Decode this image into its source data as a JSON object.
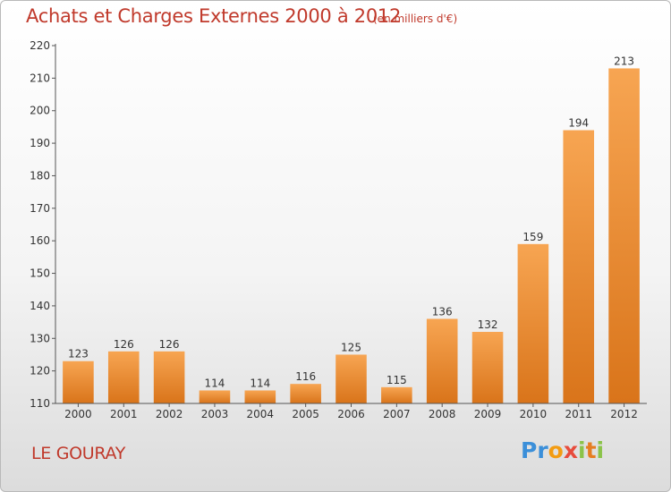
{
  "header": {
    "title": "Achats et Charges Externes 2000 à 2012",
    "unit_note": "(en milliers d'€)"
  },
  "footer": {
    "commune": "LE GOURAY",
    "logo_letters": [
      "P",
      "r",
      "o",
      "x",
      "i",
      "t",
      "i"
    ],
    "logo_colors": [
      "#3b8fd9",
      "#3b8fd9",
      "#f39c12",
      "#e74c3c",
      "#8bc34a",
      "#e67e22",
      "#8bc34a"
    ]
  },
  "chart_data": {
    "type": "bar",
    "title": "Achats et Charges Externes 2000 à 2012",
    "categories": [
      "2000",
      "2001",
      "2002",
      "2003",
      "2004",
      "2005",
      "2006",
      "2007",
      "2008",
      "2009",
      "2010",
      "2011",
      "2012"
    ],
    "values": [
      123,
      126,
      126,
      114,
      114,
      116,
      125,
      115,
      136,
      132,
      159,
      194,
      213
    ],
    "ylim": [
      110,
      220
    ],
    "yticks": [
      110,
      120,
      130,
      140,
      150,
      160,
      170,
      180,
      190,
      200,
      210,
      220
    ],
    "grid": false,
    "legend": "none",
    "bar_color_light": "#f7a552",
    "bar_color_dark": "#d9741a"
  }
}
